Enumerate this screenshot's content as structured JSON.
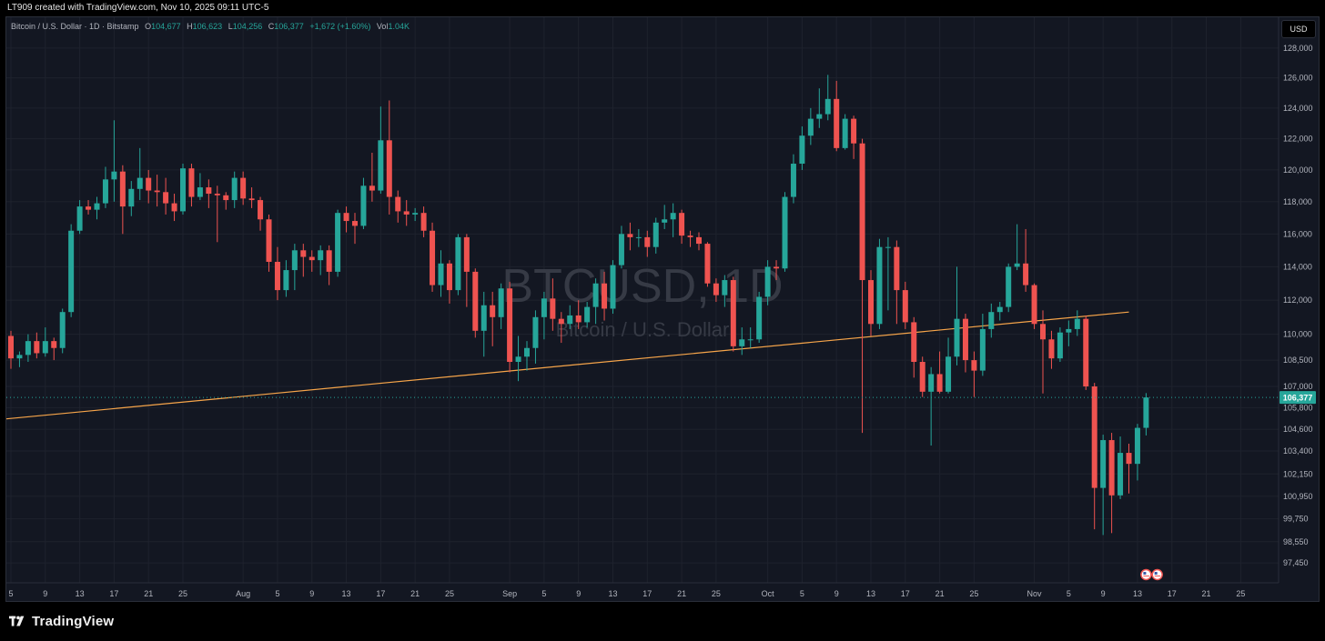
{
  "header": {
    "credit": "LT909 created with TradingView.com, Nov 10, 2025 09:11 UTC-5"
  },
  "symbol_info": {
    "name": "Bitcoin / U.S. Dollar · 1D · Bitstamp",
    "open_label": "O",
    "open": "104,677",
    "high_label": "H",
    "high": "106,623",
    "low_label": "L",
    "low": "104,256",
    "close_label": "C",
    "close": "106,377",
    "change": "+1,672 (+1.60%)",
    "vol_label": "Vol",
    "vol": "1.04K"
  },
  "currency_button": "USD",
  "watermark": {
    "ticker": "BTCUSD, 1D",
    "name": "Bitcoin / U.S. Dollar"
  },
  "brand": "TradingView",
  "colors": {
    "up": "#26a69a",
    "down": "#ef5350",
    "trendline": "#f7a54a",
    "background": "#131722",
    "grid": "#1e222d"
  },
  "chart_data": {
    "type": "candlestick",
    "interval": "1D",
    "y_scale": "log",
    "ylim": [
      96800,
      128800
    ],
    "y_ticks": [
      128000,
      126000,
      124000,
      122000,
      120000,
      118000,
      116000,
      114000,
      112000,
      110000,
      108500,
      107000,
      105800,
      104600,
      103400,
      102150,
      100950,
      99750,
      98550,
      97450
    ],
    "y_tick_labels": [
      "128,000",
      "126,000",
      "124,000",
      "122,000",
      "120,000",
      "118,000",
      "116,000",
      "114,000",
      "112,000",
      "110,000",
      "108,500",
      "107,000",
      "105,800",
      "104,600",
      "103,400",
      "102,150",
      "100,950",
      "99,750",
      "98,550",
      "97,450"
    ],
    "x_labels": [
      "5",
      "9",
      "13",
      "17",
      "21",
      "25",
      "Aug",
      "5",
      "9",
      "13",
      "17",
      "21",
      "25",
      "Sep",
      "5",
      "9",
      "13",
      "17",
      "21",
      "25",
      "Oct",
      "5",
      "9",
      "13",
      "17",
      "21",
      "25",
      "Nov",
      "5",
      "9",
      "13",
      "17",
      "21",
      "25"
    ],
    "x_label_day_index": [
      0,
      4,
      8,
      12,
      16,
      20,
      27,
      31,
      35,
      39,
      43,
      47,
      51,
      58,
      62,
      66,
      70,
      74,
      78,
      82,
      88,
      92,
      96,
      100,
      104,
      108,
      112,
      119,
      123,
      127,
      131,
      135,
      139,
      143
    ],
    "current_price": 106377,
    "current_price_label": "106,377",
    "trendline": {
      "start_day": 0,
      "start_price": 105200,
      "end_day": 130,
      "end_price": 111300
    },
    "candles": [
      [
        109900,
        108600,
        110200,
        108000
      ],
      [
        108600,
        108800,
        109000,
        108100
      ],
      [
        108800,
        109600,
        110000,
        108400
      ],
      [
        109600,
        108900,
        110100,
        108600
      ],
      [
        108900,
        109600,
        110400,
        108700
      ],
      [
        109600,
        109200,
        109800,
        108500
      ],
      [
        109200,
        111300,
        111500,
        108900
      ],
      [
        111300,
        116200,
        116600,
        111000
      ],
      [
        116200,
        117700,
        118100,
        116000
      ],
      [
        117700,
        117500,
        118100,
        117200
      ],
      [
        117500,
        117900,
        118300,
        116900
      ],
      [
        117900,
        119400,
        120200,
        117600
      ],
      [
        119400,
        119900,
        123200,
        118000
      ],
      [
        119900,
        117700,
        120300,
        116000
      ],
      [
        117700,
        118800,
        119300,
        117100
      ],
      [
        118800,
        119500,
        121400,
        118100
      ],
      [
        119500,
        118700,
        120000,
        117900
      ],
      [
        118700,
        118600,
        119700,
        117700
      ],
      [
        118600,
        117900,
        119500,
        117200
      ],
      [
        117900,
        117400,
        118500,
        116800
      ],
      [
        117400,
        120100,
        120400,
        117200
      ],
      [
        120100,
        118300,
        120400,
        117700
      ],
      [
        118300,
        118900,
        119800,
        118100
      ],
      [
        118900,
        118500,
        119400,
        117600
      ],
      [
        118500,
        118400,
        119000,
        115500
      ],
      [
        118400,
        118100,
        118600,
        117500
      ],
      [
        118100,
        119500,
        119900,
        117600
      ],
      [
        119500,
        118200,
        119900,
        117800
      ],
      [
        118200,
        118100,
        118900,
        117600
      ],
      [
        118100,
        116900,
        118300,
        116200
      ],
      [
        116900,
        114300,
        117200,
        113700
      ],
      [
        114300,
        112600,
        115200,
        112000
      ],
      [
        112600,
        113800,
        114400,
        112200
      ],
      [
        113800,
        115000,
        115400,
        112600
      ],
      [
        115000,
        114600,
        115400,
        113400
      ],
      [
        114600,
        114400,
        115000,
        113700
      ],
      [
        114400,
        115000,
        115300,
        113500
      ],
      [
        115000,
        113700,
        115300,
        112900
      ],
      [
        113700,
        117300,
        117500,
        113400
      ],
      [
        117300,
        116800,
        117700,
        116100
      ],
      [
        116800,
        116500,
        117300,
        115400
      ],
      [
        116500,
        119000,
        119500,
        116300
      ],
      [
        119000,
        118700,
        121100,
        118000
      ],
      [
        118700,
        121900,
        124100,
        118500
      ],
      [
        121900,
        118300,
        124500,
        117200
      ],
      [
        118300,
        117400,
        118700,
        116700
      ],
      [
        117400,
        117200,
        118100,
        116500
      ],
      [
        117200,
        117300,
        117600,
        116800
      ],
      [
        117300,
        116200,
        117700,
        115800
      ],
      [
        116200,
        112900,
        116700,
        112500
      ],
      [
        112900,
        114200,
        115000,
        112200
      ],
      [
        114200,
        112600,
        114400,
        111800
      ],
      [
        112600,
        115800,
        116000,
        112300
      ],
      [
        115800,
        113700,
        116000,
        111600
      ],
      [
        113700,
        110200,
        113900,
        109800
      ],
      [
        110200,
        111700,
        112500,
        108700
      ],
      [
        111700,
        111000,
        112500,
        109300
      ],
      [
        111000,
        112700,
        113000,
        110300
      ],
      [
        112700,
        108400,
        113100,
        107800
      ],
      [
        108400,
        108700,
        109900,
        107300
      ],
      [
        108700,
        109200,
        109600,
        107900
      ],
      [
        109200,
        111000,
        111400,
        108300
      ],
      [
        111000,
        112100,
        112500,
        109700
      ],
      [
        112100,
        110900,
        113300,
        110200
      ],
      [
        110900,
        110600,
        111300,
        109500
      ],
      [
        110600,
        111100,
        111700,
        110300
      ],
      [
        111100,
        110700,
        112000,
        110300
      ],
      [
        110700,
        111600,
        111900,
        110400
      ],
      [
        111600,
        113000,
        113300,
        110600
      ],
      [
        113000,
        111500,
        113700,
        110800
      ],
      [
        111500,
        114100,
        114400,
        111200
      ],
      [
        114100,
        116000,
        116500,
        113900
      ],
      [
        116000,
        115800,
        116700,
        115000
      ],
      [
        115800,
        115800,
        116300,
        115200
      ],
      [
        115800,
        115200,
        116200,
        114600
      ],
      [
        115200,
        116700,
        117000,
        114800
      ],
      [
        116700,
        116900,
        117800,
        116300
      ],
      [
        116900,
        117300,
        117900,
        115800
      ],
      [
        117300,
        115900,
        117500,
        115400
      ],
      [
        115900,
        115800,
        116200,
        115200
      ],
      [
        115800,
        115400,
        116100,
        115000
      ],
      [
        115400,
        113000,
        115500,
        112800
      ],
      [
        113000,
        112300,
        113300,
        111900
      ],
      [
        112300,
        113200,
        113500,
        111600
      ],
      [
        113200,
        109300,
        113400,
        109000
      ],
      [
        109300,
        109700,
        110400,
        108800
      ],
      [
        109700,
        109700,
        110400,
        109200
      ],
      [
        109700,
        112200,
        112500,
        109500
      ],
      [
        112200,
        114000,
        114400,
        111700
      ],
      [
        114000,
        113900,
        114400,
        113200
      ],
      [
        113900,
        118300,
        118600,
        113700
      ],
      [
        118300,
        120400,
        121000,
        117900
      ],
      [
        120400,
        122200,
        122800,
        120000
      ],
      [
        122200,
        123300,
        124000,
        121600
      ],
      [
        123300,
        123600,
        125300,
        122700
      ],
      [
        123600,
        124600,
        126200,
        123200
      ],
      [
        124600,
        121400,
        125800,
        121200
      ],
      [
        121400,
        123300,
        123600,
        121300
      ],
      [
        123300,
        121700,
        123500,
        120700
      ],
      [
        121700,
        113200,
        122000,
        104400
      ],
      [
        113200,
        110600,
        113800,
        109900
      ],
      [
        110600,
        115200,
        115700,
        110300
      ],
      [
        115200,
        115200,
        115800,
        111400
      ],
      [
        115200,
        112600,
        115600,
        110600
      ],
      [
        112600,
        110700,
        113100,
        110300
      ],
      [
        110700,
        108400,
        111000,
        107500
      ],
      [
        108400,
        106700,
        108700,
        106400
      ],
      [
        106700,
        107700,
        108100,
        103700
      ],
      [
        107700,
        106700,
        109000,
        106600
      ],
      [
        106700,
        108700,
        109800,
        106600
      ],
      [
        108700,
        110900,
        114000,
        108200
      ],
      [
        110900,
        108500,
        111200,
        107800
      ],
      [
        108500,
        107900,
        109000,
        106400
      ],
      [
        107900,
        110300,
        111200,
        107600
      ],
      [
        110300,
        111300,
        111800,
        109800
      ],
      [
        111300,
        111600,
        111900,
        110800
      ],
      [
        111600,
        114000,
        114200,
        111300
      ],
      [
        114000,
        114200,
        116600,
        113800
      ],
      [
        114200,
        112900,
        116300,
        112500
      ],
      [
        112900,
        110600,
        113000,
        110300
      ],
      [
        110600,
        109700,
        111400,
        106600
      ],
      [
        109700,
        108600,
        110200,
        108000
      ],
      [
        108600,
        110100,
        110400,
        108400
      ],
      [
        110100,
        110300,
        110800,
        109300
      ],
      [
        110300,
        110900,
        111400,
        109900
      ],
      [
        110900,
        107000,
        111100,
        106800
      ],
      [
        107000,
        101400,
        107200,
        99200
      ],
      [
        101400,
        104000,
        104300,
        98900
      ],
      [
        104000,
        101000,
        104400,
        99000
      ],
      [
        101000,
        103300,
        104200,
        100800
      ],
      [
        103300,
        102700,
        103800,
        101100
      ],
      [
        102700,
        104677,
        104900,
        101800
      ],
      [
        104677,
        106377,
        106623,
        104256
      ]
    ]
  }
}
